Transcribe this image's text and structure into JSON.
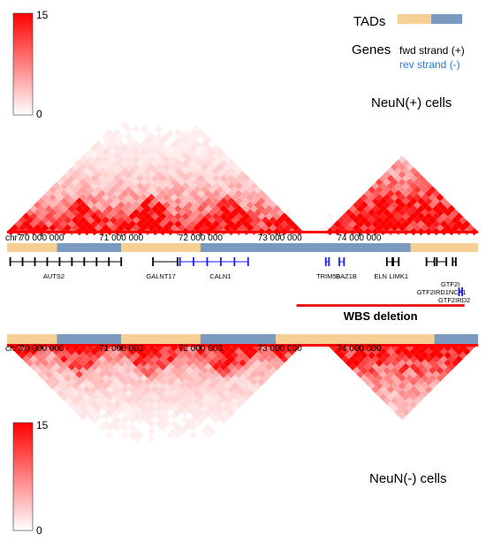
{
  "colors": {
    "heat_high": "#ff0000",
    "heat_low": "#ffffff",
    "tad_a": "#f5cf94",
    "tad_b": "#7b9abf",
    "fwd_gene": "#000000",
    "rev_gene": "#1a1aff",
    "rev_text": "#1e7fe0",
    "deletion": "#e8191f"
  },
  "legend": {
    "tads_label": "TADs",
    "genes_label": "Genes",
    "fwd_label": "fwd strand (+)",
    "rev_label": "rev strand (-)"
  },
  "colorbar_top": {
    "max": "15",
    "min": "0"
  },
  "colorbar_bottom": {
    "max": "15",
    "min": "0"
  },
  "panels": {
    "top_label": "NeuN(+) cells",
    "bottom_label": "NeuN(-) cells"
  },
  "axis": {
    "chrom": "chr7",
    "ticks": [
      {
        "pos": 70000000,
        "label": "70 000 000"
      },
      {
        "pos": 71000000,
        "label": "71 000 000"
      },
      {
        "pos": 72000000,
        "label": "72 000 000"
      },
      {
        "pos": 73000000,
        "label": "73 000 000"
      },
      {
        "pos": 74000000,
        "label": "74 000 000"
      }
    ]
  },
  "tads_top": [
    {
      "start": 69560000,
      "end": 70190000,
      "kind": "a"
    },
    {
      "start": 70190000,
      "end": 71000000,
      "kind": "b"
    },
    {
      "start": 71000000,
      "end": 72000000,
      "kind": "a"
    },
    {
      "start": 72000000,
      "end": 74650000,
      "kind": "b"
    },
    {
      "start": 74650000,
      "end": 75500000,
      "kind": "a"
    }
  ],
  "tads_bottom": [
    {
      "start": 69560000,
      "end": 70190000,
      "kind": "a"
    },
    {
      "start": 70190000,
      "end": 71000000,
      "kind": "b"
    },
    {
      "start": 71000000,
      "end": 72000000,
      "kind": "a"
    },
    {
      "start": 72000000,
      "end": 72950000,
      "kind": "b"
    },
    {
      "start": 72950000,
      "end": 74950000,
      "kind": "a"
    },
    {
      "start": 74950000,
      "end": 75500000,
      "kind": "b"
    }
  ],
  "genes": [
    {
      "name": "AUTS2",
      "start": 69600000,
      "end": 71000000,
      "strand": "+",
      "row": 0,
      "label_pos": 70150000,
      "label_row": 0
    },
    {
      "name": "GALNT17",
      "start": 71400000,
      "end": 71710000,
      "strand": "+",
      "row": 0,
      "label_pos": 71500000,
      "label_row": 0
    },
    {
      "name": "CALN1",
      "start": 71740000,
      "end": 72600000,
      "strand": "-",
      "row": 0,
      "label_pos": 72250000,
      "label_row": 0
    },
    {
      "name": "TRIM50",
      "start": 73580000,
      "end": 73620000,
      "strand": "-",
      "row": 0,
      "label_pos": 73610000,
      "label_row": 0
    },
    {
      "name": "BAZ1B",
      "start": 73750000,
      "end": 73810000,
      "strand": "-",
      "row": 0,
      "label_pos": 73840000,
      "label_row": 0
    },
    {
      "name": "ELN",
      "start": 74350000,
      "end": 74430000,
      "strand": "+",
      "row": 0,
      "label_pos": 74270000,
      "label_row": 0
    },
    {
      "name": "LIMK1",
      "start": 74420000,
      "end": 74500000,
      "strand": "+",
      "row": 0,
      "label_pos": 74500000,
      "label_row": 0
    },
    {
      "name": "GTF2I",
      "start": 74980000,
      "end": 75100000,
      "strand": "+",
      "row": 0,
      "label_pos": 75150000,
      "label_row": 1
    },
    {
      "name": "GTF2IRD1",
      "start": 74850000,
      "end": 74950000,
      "strand": "+",
      "row": 0,
      "label_pos": 74930000,
      "label_row": 2
    },
    {
      "name": "NCF1",
      "start": 75180000,
      "end": 75220000,
      "strand": "+",
      "row": 0,
      "label_pos": 75240000,
      "label_row": 2
    },
    {
      "name": "GTF2IRD2",
      "start": 75260000,
      "end": 75300000,
      "strand": "-",
      "row": 1,
      "label_pos": 75200000,
      "label_row": 3
    }
  ],
  "deletion": {
    "label": "WBS deletion",
    "start": 73210000,
    "end": 75330000
  }
}
